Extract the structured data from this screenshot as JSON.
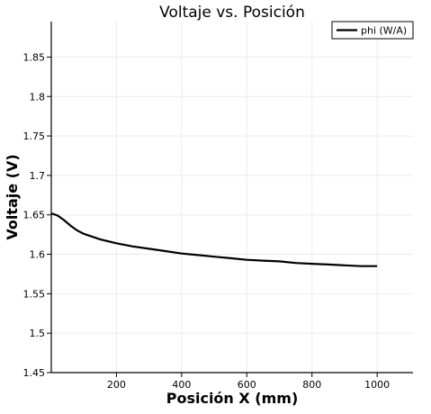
{
  "chart_data": {
    "type": "line",
    "title": "Voltaje vs. Posición",
    "xlabel": "Posición X (mm)",
    "ylabel": "Voltaje (V)",
    "xlim": [
      0,
      1110
    ],
    "ylim": [
      1.45,
      1.895
    ],
    "x_ticks": [
      200,
      400,
      600,
      800,
      1000
    ],
    "x_tick_labels": [
      "200",
      "400",
      "600",
      "800",
      "1000"
    ],
    "y_ticks": [
      1.45,
      1.5,
      1.55,
      1.6,
      1.65,
      1.7,
      1.75,
      1.8,
      1.85
    ],
    "y_tick_labels": [
      "1.45",
      "1.5",
      "1.55",
      "1.6",
      "1.65",
      "1.7",
      "1.75",
      "1.8",
      "1.85"
    ],
    "grid": true,
    "legend_position": "top-right",
    "series": [
      {
        "name": "phi (W/A)",
        "color": "#000000",
        "x": [
          0,
          20,
          40,
          60,
          80,
          100,
          150,
          200,
          250,
          300,
          350,
          400,
          450,
          500,
          550,
          600,
          650,
          700,
          750,
          800,
          850,
          900,
          950,
          1000
        ],
        "y": [
          1.652,
          1.649,
          1.643,
          1.636,
          1.63,
          1.626,
          1.619,
          1.614,
          1.61,
          1.607,
          1.604,
          1.601,
          1.599,
          1.597,
          1.595,
          1.593,
          1.592,
          1.591,
          1.589,
          1.588,
          1.587,
          1.586,
          1.585,
          1.585
        ]
      }
    ]
  }
}
